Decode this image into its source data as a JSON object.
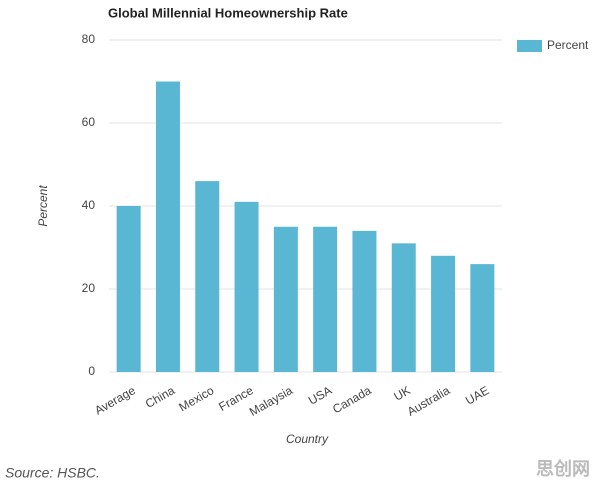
{
  "chart_data": {
    "type": "bar",
    "title": "Global Millennial Homeownership Rate",
    "categories": [
      "Average",
      "China",
      "Mexico",
      "France",
      "Malaysia",
      "USA",
      "Canada",
      "UK",
      "Australia",
      "UAE"
    ],
    "series": [
      {
        "name": "Percent",
        "color": "#5ab7d3",
        "values": [
          40,
          70,
          46,
          41,
          35,
          35,
          34,
          31,
          28,
          26
        ]
      }
    ],
    "x_label": "Country",
    "y_label": "Percent",
    "ylim": [
      0,
      80
    ],
    "yticks": [
      0,
      20,
      40,
      60,
      80
    ],
    "grid": true,
    "legend": "top-right"
  },
  "source": "Source: HSBC.",
  "watermark": "思创网"
}
